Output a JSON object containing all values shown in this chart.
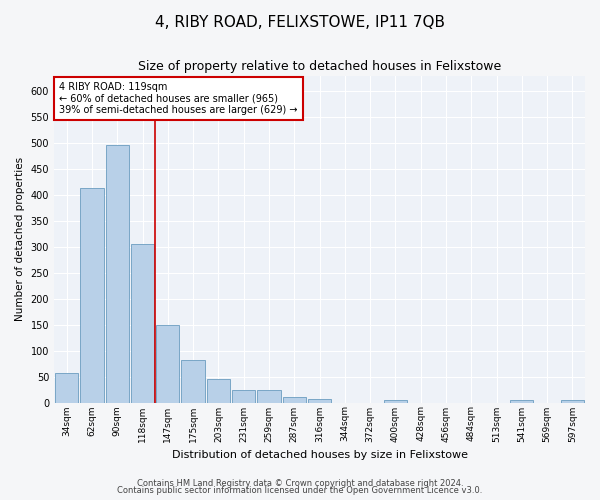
{
  "title": "4, RIBY ROAD, FELIXSTOWE, IP11 7QB",
  "subtitle": "Size of property relative to detached houses in Felixstowe",
  "xlabel": "Distribution of detached houses by size in Felixstowe",
  "ylabel": "Number of detached properties",
  "categories": [
    "34sqm",
    "62sqm",
    "90sqm",
    "118sqm",
    "147sqm",
    "175sqm",
    "203sqm",
    "231sqm",
    "259sqm",
    "287sqm",
    "316sqm",
    "344sqm",
    "372sqm",
    "400sqm",
    "428sqm",
    "456sqm",
    "484sqm",
    "513sqm",
    "541sqm",
    "569sqm",
    "597sqm"
  ],
  "values": [
    57,
    413,
    496,
    305,
    149,
    82,
    45,
    24,
    24,
    10,
    6,
    0,
    0,
    5,
    0,
    0,
    0,
    0,
    4,
    0,
    4
  ],
  "bar_color": "#b8d0e8",
  "bar_edge_color": "#6a9cc0",
  "red_line_x": 3,
  "annotation_text": "4 RIBY ROAD: 119sqm\n← 60% of detached houses are smaller (965)\n39% of semi-detached houses are larger (629) →",
  "annotation_box_color": "#ffffff",
  "annotation_box_edge": "#cc0000",
  "ylim": [
    0,
    630
  ],
  "yticks": [
    0,
    50,
    100,
    150,
    200,
    250,
    300,
    350,
    400,
    450,
    500,
    550,
    600
  ],
  "background_color": "#eef2f8",
  "grid_color": "#ffffff",
  "footer_line1": "Contains HM Land Registry data © Crown copyright and database right 2024.",
  "footer_line2": "Contains public sector information licensed under the Open Government Licence v3.0.",
  "title_fontsize": 11,
  "subtitle_fontsize": 9,
  "fig_width": 6.0,
  "fig_height": 5.0,
  "fig_dpi": 100
}
